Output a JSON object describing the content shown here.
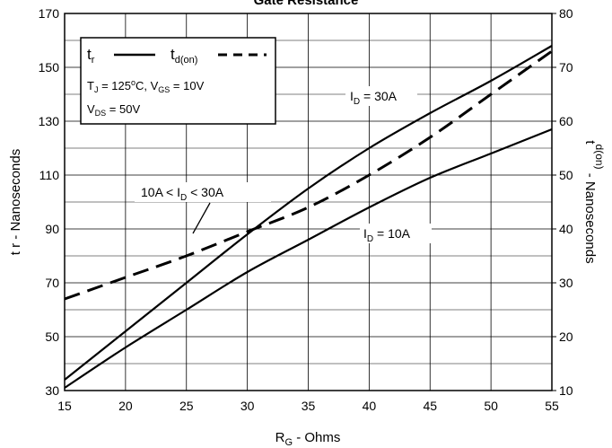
{
  "chart_data": {
    "type": "line",
    "title": "Gate Resistance",
    "xlabel": {
      "main": "R",
      "sub": "G",
      "rest": " - Ohms"
    },
    "ylabel_left": "t r - Nanoseconds",
    "ylabel_right": {
      "main": "t",
      "sub": "d(on)",
      "rest": " - Nanoseconds"
    },
    "xlim": [
      15,
      55
    ],
    "ylim_left": [
      30,
      170
    ],
    "ylim_right": [
      10,
      80
    ],
    "x_ticks": [
      15,
      20,
      25,
      30,
      35,
      40,
      45,
      50,
      55
    ],
    "y_ticks_left": [
      30,
      50,
      70,
      90,
      110,
      130,
      150,
      170
    ],
    "y_ticks_right": [
      10,
      20,
      30,
      40,
      50,
      60,
      70,
      80
    ],
    "grid": true,
    "series": [
      {
        "name": "tr, ID = 30A",
        "axis": "left",
        "style": "solid",
        "x": [
          15,
          20,
          25,
          30,
          35,
          40,
          45,
          50,
          55
        ],
        "y": [
          34,
          52,
          70,
          88,
          105,
          120,
          133,
          145,
          158
        ]
      },
      {
        "name": "tr, ID = 10A",
        "axis": "left",
        "style": "solid",
        "x": [
          15,
          20,
          25,
          30,
          35,
          40,
          45,
          50,
          55
        ],
        "y": [
          31,
          46,
          60,
          74,
          86,
          98,
          109,
          118,
          127
        ]
      },
      {
        "name": "td(on), 10A < ID < 30A",
        "axis": "right",
        "style": "dashed",
        "x": [
          15,
          20,
          25,
          30,
          35,
          40,
          45,
          50,
          55
        ],
        "y": [
          27,
          31,
          35,
          39.5,
          44,
          50,
          57,
          65,
          73
        ]
      }
    ],
    "legend": {
      "position": "top-left",
      "tr": {
        "main": "t",
        "sub": "r"
      },
      "td": {
        "main": "t",
        "sub": "d(on)"
      },
      "cond1": {
        "a": "T",
        "a_sub": "J",
        "b": " = 125",
        "c_sup": "o",
        "d": "C,  V",
        "d_sub": "GS",
        "e": " = 10V"
      },
      "cond2": {
        "a": "V",
        "a_sub": "DS",
        "b": " = 50V"
      }
    },
    "annotations": {
      "id30": {
        "a": "I",
        "sub": "D",
        "b": " = 30A"
      },
      "id10": {
        "a": "I",
        "sub": "D",
        "b": " = 10A"
      },
      "idrange": {
        "a": "10A < I",
        "sub": "D",
        "b": " < 30A"
      }
    }
  }
}
